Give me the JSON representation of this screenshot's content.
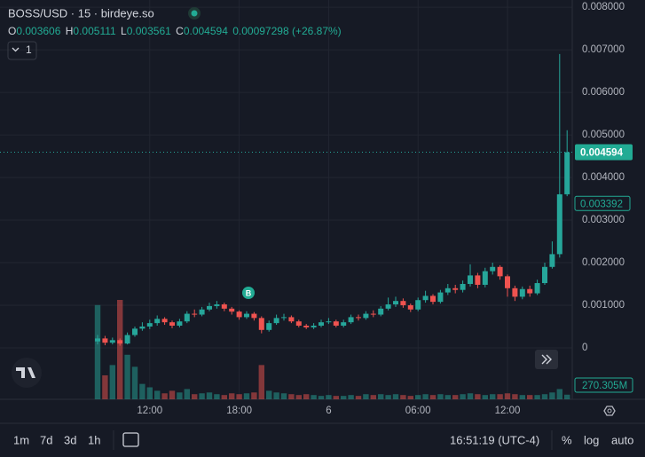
{
  "header": {
    "title": "BOSS/USD · 15 · birdeye.so",
    "o": "O",
    "h": "H",
    "l": "L",
    "c": "C",
    "change": "0.00097298",
    "change_pct": "(+26.87%)",
    "indicator_count": "1"
  },
  "toolbar": {
    "intervals": [
      "1m",
      "7d",
      "3d",
      "1h"
    ],
    "clock": "16:51:19 (UTC-4)",
    "scale_options": [
      "%",
      "log",
      "auto"
    ]
  },
  "chart_data": {
    "type": "candlestick",
    "categories": [
      null,
      null,
      null,
      null,
      null,
      null,
      null,
      "12:00",
      null,
      null,
      null,
      null,
      null,
      null,
      null,
      null,
      null,
      null,
      null,
      "18:00",
      null,
      null,
      null,
      null,
      null,
      null,
      null,
      null,
      null,
      null,
      null,
      "6",
      null,
      null,
      null,
      null,
      null,
      null,
      null,
      null,
      null,
      null,
      null,
      "06:00",
      null,
      null,
      null,
      null,
      null,
      null,
      null,
      null,
      null,
      null,
      null,
      "12:00",
      null,
      null,
      null,
      null,
      null,
      null,
      null,
      null
    ],
    "open": [
      0.00015,
      0.00022,
      0.00012,
      0.00018,
      0.0001,
      0.0003,
      0.00045,
      0.0005,
      0.00058,
      0.00068,
      0.0006,
      0.00052,
      0.00062,
      0.0008,
      0.00078,
      0.0009,
      0.00098,
      0.00102,
      0.00092,
      0.00085,
      0.00072,
      0.0008,
      0.0007,
      0.00042,
      0.00058,
      0.0007,
      0.00072,
      0.00062,
      0.00052,
      0.00048,
      0.00052,
      0.0006,
      0.00062,
      0.00052,
      0.0006,
      0.00072,
      0.0007,
      0.0008,
      0.00078,
      0.00092,
      0.00102,
      0.0011,
      0.001,
      0.0009,
      0.00112,
      0.00122,
      0.00108,
      0.0013,
      0.0014,
      0.00136,
      0.0015,
      0.0017,
      0.00148,
      0.0018,
      0.0019,
      0.00168,
      0.0014,
      0.0012,
      0.00138,
      0.00128,
      0.00152,
      0.0019,
      0.0022,
      0.003606
    ],
    "high": [
      0.0003,
      0.00028,
      0.00024,
      0.00022,
      0.00036,
      0.0005,
      0.0006,
      0.00066,
      0.00076,
      0.00072,
      0.00064,
      0.00068,
      0.00086,
      0.0009,
      0.00096,
      0.00106,
      0.0011,
      0.00106,
      0.00096,
      0.00088,
      0.00086,
      0.00084,
      0.00074,
      0.00064,
      0.00078,
      0.0008,
      0.00076,
      0.00066,
      0.00056,
      0.00058,
      0.00066,
      0.0007,
      0.00066,
      0.00066,
      0.00078,
      0.00078,
      0.00086,
      0.00088,
      0.00098,
      0.00118,
      0.0012,
      0.00116,
      0.00104,
      0.00118,
      0.00134,
      0.00126,
      0.00136,
      0.0015,
      0.00148,
      0.00158,
      0.00196,
      0.00176,
      0.00188,
      0.002,
      0.00194,
      0.00172,
      0.00146,
      0.00144,
      0.00146,
      0.0016,
      0.002,
      0.0025,
      0.0069,
      0.005111
    ],
    "low": [
      8e-05,
      6e-05,
      8e-05,
      5e-05,
      8e-05,
      0.00026,
      0.0004,
      0.00044,
      0.00052,
      0.00054,
      0.00046,
      0.00048,
      0.00058,
      0.00072,
      0.00074,
      0.00086,
      0.00092,
      0.00086,
      0.00078,
      0.00066,
      0.00068,
      0.00064,
      0.00034,
      0.00038,
      0.00054,
      0.00064,
      0.00058,
      0.00048,
      0.00044,
      0.00044,
      0.00048,
      0.00056,
      0.00048,
      0.00048,
      0.00056,
      0.00064,
      0.00066,
      0.00072,
      0.00074,
      0.00088,
      0.00096,
      0.00094,
      0.00084,
      0.00086,
      0.00106,
      0.00102,
      0.00104,
      0.00124,
      0.00128,
      0.0013,
      0.00144,
      0.0014,
      0.00142,
      0.00172,
      0.0016,
      0.0012,
      0.0011,
      0.00114,
      0.0012,
      0.00124,
      0.00148,
      0.00186,
      0.00212,
      0.003561
    ],
    "close": [
      0.00022,
      0.00012,
      0.00018,
      0.0001,
      0.0003,
      0.00045,
      0.0005,
      0.00058,
      0.00068,
      0.0006,
      0.00052,
      0.00062,
      0.0008,
      0.00078,
      0.0009,
      0.00098,
      0.00102,
      0.00092,
      0.00085,
      0.00072,
      0.0008,
      0.0007,
      0.00042,
      0.00058,
      0.0007,
      0.00072,
      0.00062,
      0.00052,
      0.00048,
      0.00052,
      0.0006,
      0.00062,
      0.00052,
      0.0006,
      0.00072,
      0.0007,
      0.0008,
      0.00078,
      0.00092,
      0.00102,
      0.0011,
      0.001,
      0.0009,
      0.00112,
      0.00122,
      0.00108,
      0.0013,
      0.0014,
      0.00136,
      0.0015,
      0.0017,
      0.00148,
      0.0018,
      0.0019,
      0.00168,
      0.0014,
      0.0012,
      0.00138,
      0.00128,
      0.00152,
      0.0019,
      0.0022,
      0.003606,
      0.004594
    ],
    "volume": [
      5500,
      1400,
      2000,
      5800,
      2600,
      1900,
      900,
      700,
      500,
      350,
      500,
      400,
      600,
      300,
      350,
      400,
      300,
      250,
      350,
      300,
      350,
      400,
      2000,
      500,
      400,
      350,
      300,
      250,
      300,
      250,
      200,
      250,
      200,
      200,
      250,
      200,
      300,
      250,
      300,
      250,
      300,
      250,
      200,
      250,
      300,
      250,
      300,
      250,
      250,
      300,
      350,
      300,
      250,
      300,
      300,
      350,
      300,
      250,
      250,
      250,
      300,
      400,
      600,
      270.305
    ],
    "volume_label": "270.305M",
    "marker_price": 0.003392,
    "buy_marker_label": "B",
    "ylim": [
      -0.00121,
      0.00817
    ],
    "yticks": [
      {
        "value": 0.008,
        "label": "0.008000"
      },
      {
        "value": 0.007,
        "label": "0.007000"
      },
      {
        "value": 0.006,
        "label": "0.006000"
      },
      {
        "value": 0.005,
        "label": "0.005000"
      },
      {
        "value": 0.004,
        "label": "0.004000"
      },
      {
        "value": 0.003,
        "label": "0.003000"
      },
      {
        "value": 0.002,
        "label": "0.002000"
      },
      {
        "value": 0.001,
        "label": "0.001000"
      },
      0
    ],
    "grid": true,
    "up_color": "#26a69a",
    "down_color": "#ef5350"
  }
}
